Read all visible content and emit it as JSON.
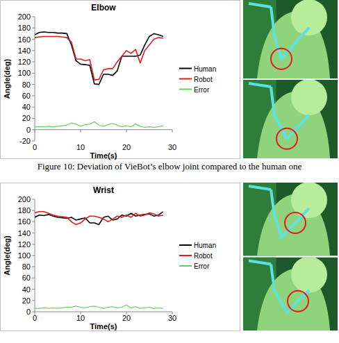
{
  "chart_data": [
    {
      "type": "line",
      "title": "Elbow",
      "x_label": "Time(s)",
      "y_label": "Angle(deg)",
      "caption": "Figure 10: Deviation of VieBot’s elbow joint compared to the human one",
      "x": [
        0,
        1,
        2,
        3,
        4,
        5,
        6,
        7,
        8,
        9,
        10,
        11,
        12,
        13,
        14,
        15,
        16,
        17,
        18,
        19,
        20,
        21,
        22,
        23,
        24,
        25,
        26,
        27,
        28
      ],
      "series": [
        {
          "name": "Human",
          "color": "#000000",
          "values": [
            168,
            172,
            173,
            172,
            172,
            171,
            171,
            170,
            150,
            122,
            116,
            115,
            114,
            81,
            80,
            98,
            98,
            96,
            104,
            130,
            130,
            130,
            130,
            132,
            150,
            165,
            170,
            168,
            165
          ]
        },
        {
          "name": "Robot",
          "color": "#e31a1c",
          "values": [
            163,
            164,
            165,
            165,
            165,
            165,
            164,
            163,
            155,
            125,
            125,
            122,
            124,
            88,
            89,
            106,
            108,
            108,
            120,
            130,
            140,
            135,
            142,
            118,
            140,
            150,
            160,
            163,
            162
          ]
        },
        {
          "name": "Error",
          "color": "#5fd35f",
          "values": [
            5,
            5,
            5,
            6,
            5,
            6,
            7,
            8,
            12,
            10,
            6,
            9,
            10,
            14,
            8,
            6,
            9,
            11,
            8,
            5,
            7,
            5,
            10,
            6,
            4,
            5,
            4,
            5,
            7
          ]
        }
      ],
      "xlim": [
        0,
        30
      ],
      "xticks": [
        0,
        10,
        20,
        30
      ],
      "ylim": [
        -20,
        200
      ],
      "yticks": [
        -20,
        0,
        20,
        40,
        60,
        80,
        100,
        120,
        140,
        160,
        180,
        200
      ],
      "grid": false,
      "legend": "right"
    },
    {
      "type": "line",
      "title": "Wrist",
      "x_label": "Time(s)",
      "y_label": "Angle(deg)",
      "x": [
        0,
        1,
        2,
        3,
        4,
        5,
        6,
        7,
        8,
        9,
        10,
        11,
        12,
        13,
        14,
        15,
        16,
        17,
        18,
        19,
        20,
        21,
        22,
        23,
        24,
        25,
        26,
        27,
        28
      ],
      "series": [
        {
          "name": "Human",
          "color": "#000000",
          "values": [
            168,
            172,
            171,
            173,
            170,
            168,
            167,
            166,
            168,
            163,
            165,
            167,
            158,
            158,
            155,
            168,
            170,
            163,
            165,
            172,
            170,
            175,
            170,
            172,
            173,
            174,
            170,
            172,
            178
          ]
        },
        {
          "name": "Robot",
          "color": "#e31a1c",
          "values": [
            176,
            178,
            178,
            175,
            172,
            170,
            169,
            168,
            160,
            155,
            158,
            165,
            170,
            170,
            168,
            165,
            160,
            165,
            170,
            168,
            172,
            168,
            175,
            170,
            172,
            176,
            174,
            170,
            172
          ]
        },
        {
          "name": "Error",
          "color": "#5fd35f",
          "values": [
            6,
            6,
            7,
            6,
            7,
            6,
            7,
            8,
            8,
            10,
            8,
            7,
            9,
            10,
            8,
            6,
            8,
            9,
            7,
            8,
            12,
            7,
            9,
            6,
            7,
            8,
            6,
            7,
            6
          ]
        }
      ],
      "xlim": [
        0,
        30
      ],
      "xticks": [
        0,
        10,
        20,
        30
      ],
      "ylim": [
        0,
        200
      ],
      "yticks": [
        0,
        20,
        40,
        60,
        80,
        100,
        120,
        140,
        160,
        180,
        200
      ],
      "grid": false,
      "legend": "right"
    }
  ]
}
